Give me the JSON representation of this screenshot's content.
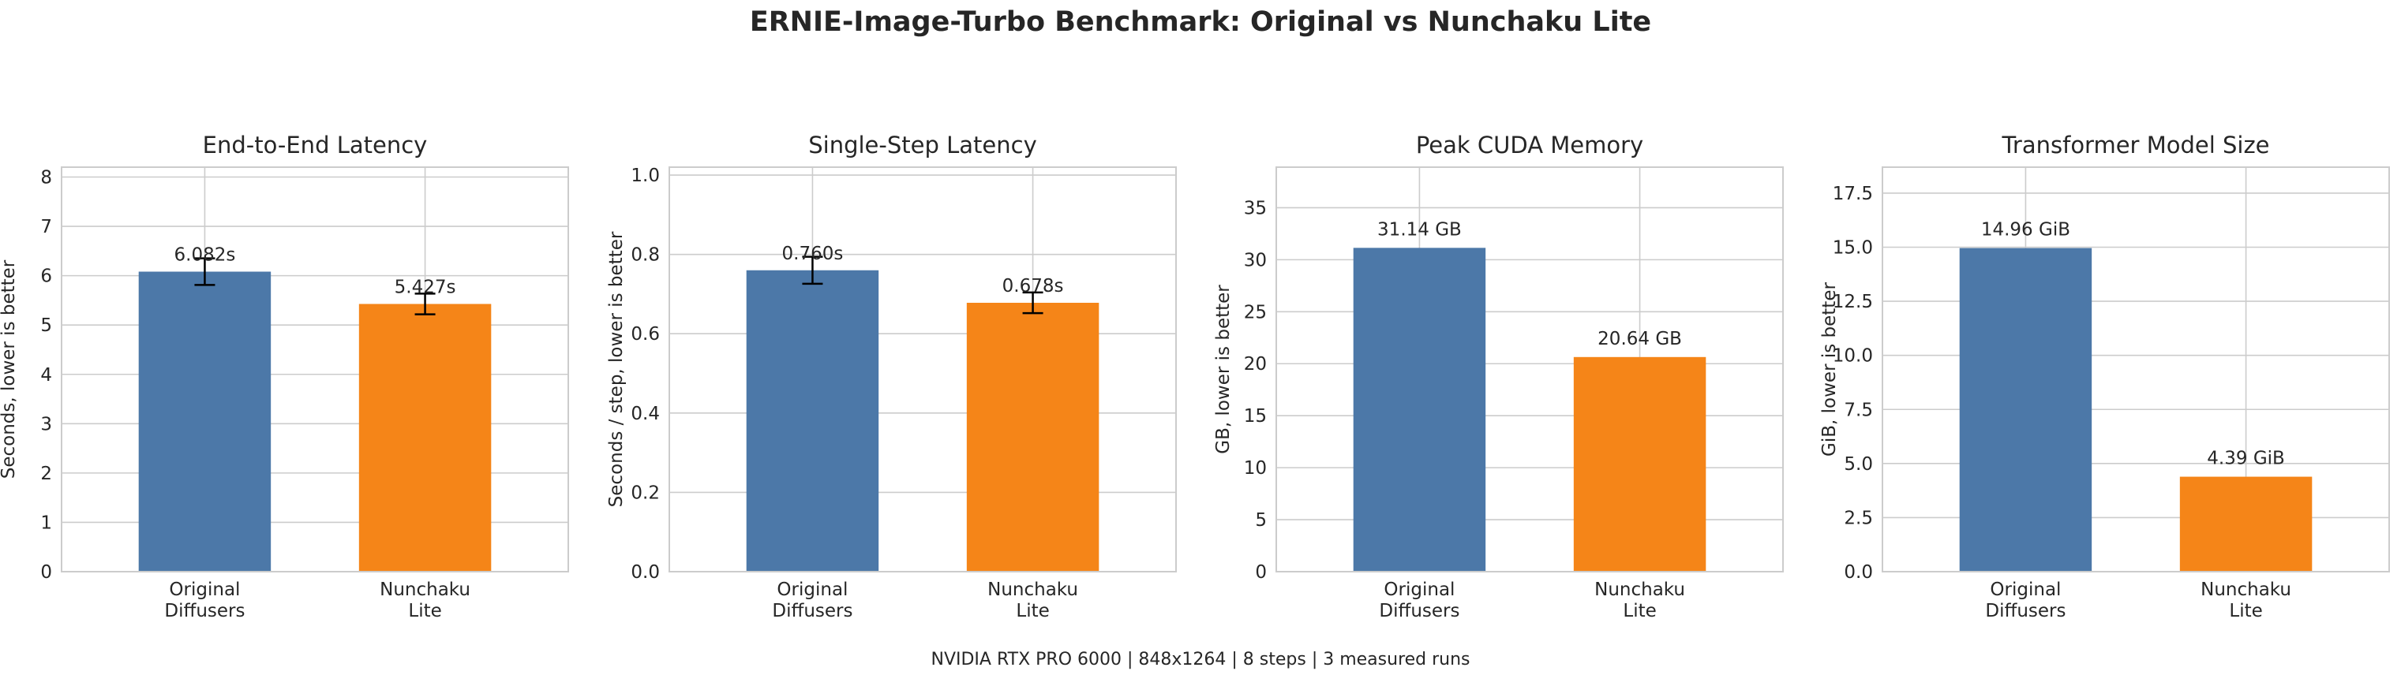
{
  "suptitle": "ERNIE-Image-Turbo Benchmark: Original vs Nunchaku Lite",
  "footer": "NVIDIA RTX PRO 6000 | 848x1264 | 8 steps | 3 measured runs",
  "colors": {
    "original": "#4c78a8",
    "nunchaku": "#f58518",
    "grid": "#cccccc",
    "spine": "#cccccc",
    "text": "#262626"
  },
  "chart_data": [
    {
      "type": "bar",
      "title": "End-to-End Latency",
      "ylabel": "Seconds, lower is better",
      "categories": [
        "Original\nDiffusers",
        "Nunchaku\nLite"
      ],
      "values": [
        6.082,
        5.427
      ],
      "errors": [
        0.27,
        0.21
      ],
      "value_labels": [
        "6.082s",
        "5.427s"
      ],
      "ylim": [
        0,
        8.2
      ],
      "yticks": [
        0,
        1,
        2,
        3,
        4,
        5,
        6,
        7,
        8
      ],
      "ytick_labels": [
        "0",
        "1",
        "2",
        "3",
        "4",
        "5",
        "6",
        "7",
        "8"
      ],
      "grid": true
    },
    {
      "type": "bar",
      "title": "Single-Step Latency",
      "ylabel": "Seconds / step, lower is better",
      "categories": [
        "Original\nDiffusers",
        "Nunchaku\nLite"
      ],
      "values": [
        0.76,
        0.678
      ],
      "errors": [
        0.034,
        0.026
      ],
      "value_labels": [
        "0.760s",
        "0.678s"
      ],
      "ylim": [
        0,
        1.02
      ],
      "yticks": [
        0,
        0.2,
        0.4,
        0.6,
        0.8,
        1.0
      ],
      "ytick_labels": [
        "0.0",
        "0.2",
        "0.4",
        "0.6",
        "0.8",
        "1.0"
      ],
      "grid": true
    },
    {
      "type": "bar",
      "title": "Peak CUDA Memory",
      "ylabel": "GB, lower is better",
      "categories": [
        "Original\nDiffusers",
        "Nunchaku\nLite"
      ],
      "values": [
        31.14,
        20.64
      ],
      "value_labels": [
        "31.14 GB",
        "20.64 GB"
      ],
      "ylim": [
        0,
        38.9
      ],
      "yticks": [
        0,
        5,
        10,
        15,
        20,
        25,
        30,
        35
      ],
      "ytick_labels": [
        "0",
        "5",
        "10",
        "15",
        "20",
        "25",
        "30",
        "35"
      ],
      "grid": true
    },
    {
      "type": "bar",
      "title": "Transformer Model Size",
      "ylabel": "GiB, lower is better",
      "categories": [
        "Original\nDiffusers",
        "Nunchaku\nLite"
      ],
      "values": [
        14.96,
        4.39
      ],
      "value_labels": [
        "14.96 GiB",
        "4.39 GiB"
      ],
      "ylim": [
        0,
        18.7
      ],
      "yticks": [
        0,
        2.5,
        5,
        7.5,
        10,
        12.5,
        15,
        17.5
      ],
      "ytick_labels": [
        "0.0",
        "2.5",
        "5.0",
        "7.5",
        "10.0",
        "12.5",
        "15.0",
        "17.5"
      ],
      "grid": true
    }
  ]
}
